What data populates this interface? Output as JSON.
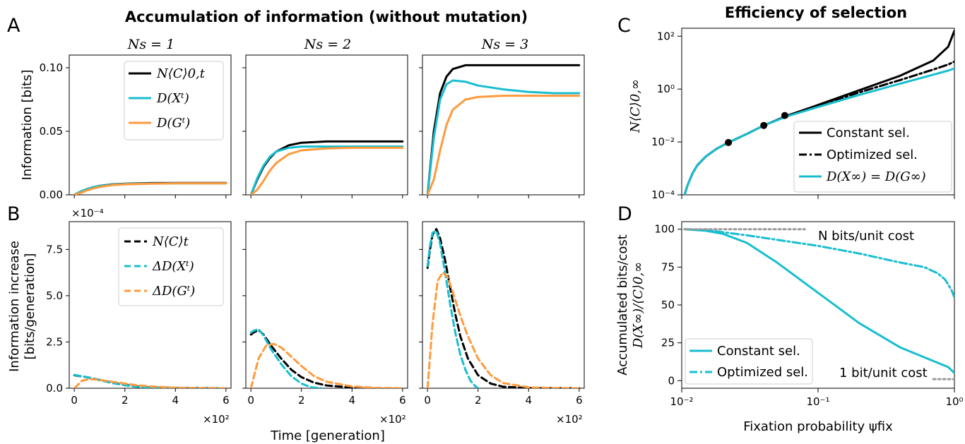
{
  "figure": {
    "left_title": "Accumulation of information (without mutation)",
    "right_title": "Efficiency of selection",
    "panel_letters": [
      "A",
      "B",
      "C",
      "D"
    ],
    "colors": {
      "black": "#000000",
      "cyan": "#17becf",
      "orange": "#ff9a3c",
      "gray": "#9a9a9a"
    }
  },
  "chart_data": [
    {
      "id": "A",
      "type": "line",
      "subplot_titles": [
        "Ns = 1",
        "Ns = 2",
        "Ns = 3"
      ],
      "ylabel": "Information [bits]",
      "ylim": [
        0,
        0.11
      ],
      "yticks": [
        "0.00",
        "0.05",
        "0.10"
      ],
      "ytick_values": [
        0,
        0.05,
        0.1
      ],
      "xlim": [
        -0.2,
        6.2
      ],
      "xtick_values": [
        0,
        2,
        4,
        6
      ],
      "legend": [
        "N⟨C⟩0,t",
        "D(Xᵗ)",
        "D(Gᵗ)"
      ],
      "legend_position": "upper-right (first subplot)",
      "series": [
        {
          "name": "N⟨C⟩0,t",
          "color": "#000000",
          "dash": "solid",
          "x": [
            0,
            0.25,
            0.5,
            0.75,
            1,
            1.5,
            2,
            3,
            4,
            5,
            6
          ],
          "values_by_subplot": [
            [
              0,
              0.0025,
              0.0045,
              0.006,
              0.007,
              0.0082,
              0.0088,
              0.0092,
              0.0093,
              0.0093,
              0.0093
            ],
            [
              0,
              0.012,
              0.022,
              0.029,
              0.034,
              0.039,
              0.041,
              0.042,
              0.042,
              0.042,
              0.042
            ],
            [
              0,
              0.05,
              0.08,
              0.093,
              0.099,
              0.102,
              0.102,
              0.102,
              0.102,
              0.102,
              0.102
            ]
          ]
        },
        {
          "name": "D(Xᵗ)",
          "color": "#17becf",
          "dash": "solid",
          "x": [
            0,
            0.25,
            0.5,
            0.75,
            1,
            1.5,
            2,
            3,
            4,
            5,
            6
          ],
          "values_by_subplot": [
            [
              0,
              0.0025,
              0.0045,
              0.006,
              0.0069,
              0.008,
              0.0086,
              0.0089,
              0.009,
              0.009,
              0.009
            ],
            [
              0,
              0.013,
              0.023,
              0.03,
              0.034,
              0.037,
              0.038,
              0.038,
              0.038,
              0.038,
              0.038
            ],
            [
              0,
              0.045,
              0.075,
              0.087,
              0.09,
              0.089,
              0.086,
              0.083,
              0.081,
              0.08,
              0.08
            ]
          ]
        },
        {
          "name": "D(Gᵗ)",
          "color": "#ff9a3c",
          "dash": "solid",
          "x": [
            0,
            0.25,
            0.5,
            0.75,
            1,
            1.5,
            2,
            3,
            4,
            5,
            6
          ],
          "values_by_subplot": [
            [
              0,
              0.0015,
              0.0035,
              0.005,
              0.0062,
              0.0076,
              0.0083,
              0.0088,
              0.009,
              0.009,
              0.009
            ],
            [
              0,
              0.004,
              0.011,
              0.019,
              0.025,
              0.032,
              0.035,
              0.0365,
              0.037,
              0.037,
              0.037
            ],
            [
              0,
              0.012,
              0.035,
              0.055,
              0.067,
              0.075,
              0.077,
              0.078,
              0.078,
              0.078,
              0.078
            ]
          ]
        }
      ]
    },
    {
      "id": "B",
      "type": "line",
      "ylabel": [
        "Information increase",
        "[bits/generation]"
      ],
      "yscale_label": "×10⁻⁴",
      "ylim": [
        0,
        9
      ],
      "yticks": [
        "0.0",
        "2.5",
        "5.0",
        "7.5"
      ],
      "ytick_values": [
        0,
        2.5,
        5.0,
        7.5
      ],
      "xlabel": "Time [generation]",
      "xscale_label": "×10²",
      "xlim": [
        -0.2,
        6.2
      ],
      "xticks": [
        "0",
        "2",
        "4",
        "6"
      ],
      "xtick_values": [
        0,
        2,
        4,
        6
      ],
      "legend": [
        "N⟨C⟩t",
        "ΔD(Xᵗ)",
        "ΔD(Gᵗ)"
      ],
      "legend_position": "upper-right (first subplot)",
      "series": [
        {
          "name": "N⟨C⟩t",
          "color": "#000000",
          "dash": "dashed",
          "x_by_subplot": [
            [
              0,
              0.5,
              1,
              1.5,
              2,
              2.5,
              3,
              4,
              5,
              6
            ],
            [
              0,
              0.1,
              0.3,
              0.5,
              0.8,
              1.2,
              1.6,
              2,
              2.5,
              3,
              4,
              5,
              6
            ],
            [
              0,
              0.1,
              0.2,
              0.35,
              0.5,
              0.7,
              0.9,
              1.1,
              1.3,
              1.6,
              2,
              2.5,
              3,
              4,
              5,
              6
            ]
          ],
          "values_by_subplot": [
            [
              0.7,
              0.6,
              0.45,
              0.3,
              0.18,
              0.1,
              0.05,
              0.02,
              0.01,
              0
            ],
            [
              2.9,
              3.0,
              3.15,
              2.9,
              2.3,
              1.6,
              1.0,
              0.6,
              0.3,
              0.15,
              0.04,
              0.01,
              0
            ],
            [
              6.5,
              7.5,
              8.3,
              8.6,
              8.1,
              6.9,
              5.4,
              4.0,
              2.8,
              1.6,
              0.7,
              0.25,
              0.08,
              0.01,
              0,
              0
            ]
          ]
        },
        {
          "name": "ΔD(Xᵗ)",
          "color": "#17becf",
          "dash": "dashed",
          "x_by_subplot": [
            [
              0,
              0.5,
              1,
              1.5,
              2,
              2.5,
              3,
              4,
              5,
              6
            ],
            [
              0,
              0.1,
              0.3,
              0.5,
              0.8,
              1.2,
              1.6,
              2,
              2.4,
              2.8
            ],
            [
              0,
              0.1,
              0.2,
              0.35,
              0.5,
              0.7,
              0.9,
              1.1,
              1.3,
              1.5,
              1.7,
              1.9,
              2.0
            ]
          ],
          "values_by_subplot": [
            [
              0.72,
              0.6,
              0.44,
              0.28,
              0.16,
              0.08,
              0.04,
              0.01,
              0,
              0
            ],
            [
              3.0,
              3.1,
              3.2,
              2.85,
              2.1,
              1.3,
              0.65,
              0.25,
              0.05,
              0
            ],
            [
              6.6,
              7.7,
              8.4,
              8.5,
              7.8,
              6.2,
              4.5,
              3.0,
              1.8,
              1.0,
              0.4,
              0.1,
              0
            ]
          ]
        },
        {
          "name": "ΔD(Gᵗ)",
          "color": "#ff9a3c",
          "dash": "dashed",
          "x_by_subplot": [
            [
              0,
              0.3,
              0.6,
              1,
              1.5,
              2,
              2.5,
              3,
              4,
              5,
              6
            ],
            [
              0,
              0.3,
              0.6,
              0.9,
              1.2,
              1.6,
              2,
              2.5,
              3,
              4,
              5,
              6
            ],
            [
              0,
              0.2,
              0.4,
              0.6,
              0.8,
              1.0,
              1.3,
              1.6,
              2,
              2.5,
              3,
              4,
              5,
              6
            ]
          ],
          "values_by_subplot": [
            [
              0,
              0.4,
              0.5,
              0.45,
              0.35,
              0.25,
              0.16,
              0.1,
              0.03,
              0.01,
              0
            ],
            [
              0,
              1.6,
              2.3,
              2.4,
              2.2,
              1.7,
              1.2,
              0.65,
              0.35,
              0.1,
              0.02,
              0
            ],
            [
              0,
              3.5,
              5.8,
              6.25,
              6.0,
              5.2,
              3.9,
              2.8,
              1.6,
              0.7,
              0.28,
              0.05,
              0.01,
              0
            ]
          ]
        }
      ]
    },
    {
      "id": "C",
      "type": "line",
      "title": "Efficiency of selection",
      "ylabel": "N⟨C⟩0,∞",
      "xscale": "log",
      "yscale": "log",
      "xlim": [
        0.01,
        1
      ],
      "ylim": [
        0.0001,
        200
      ],
      "yticks": [
        "10²",
        "10⁰",
        "10⁻²",
        "10⁻⁴"
      ],
      "ytick_values": [
        100,
        1,
        0.01,
        0.0001
      ],
      "xtick_values": [
        0.01,
        0.1,
        1
      ],
      "legend": [
        "Constant sel.",
        "Optimized sel.",
        "D(X∞) = D(G∞)"
      ],
      "legend_position": "lower-right",
      "series": [
        {
          "name": "Constant sel.",
          "color": "#000000",
          "dash": "solid",
          "x": [
            0.0105,
            0.011,
            0.012,
            0.013,
            0.015,
            0.018,
            0.022,
            0.03,
            0.04,
            0.06,
            0.1,
            0.2,
            0.4,
            0.7,
            0.9,
            1.0
          ],
          "values": [
            0.0001,
            0.00022,
            0.00065,
            0.0013,
            0.0028,
            0.0055,
            0.0095,
            0.02,
            0.042,
            0.1,
            0.25,
            0.9,
            3.2,
            12,
            40,
            160
          ]
        },
        {
          "name": "Optimized sel.",
          "color": "#000000",
          "dash": "dashdot",
          "x": [
            0.0105,
            0.011,
            0.012,
            0.013,
            0.015,
            0.018,
            0.022,
            0.03,
            0.04,
            0.06,
            0.1,
            0.2,
            0.4,
            0.7,
            0.9,
            1.0
          ],
          "values": [
            0.0001,
            0.00022,
            0.00065,
            0.0013,
            0.0028,
            0.0055,
            0.0095,
            0.02,
            0.042,
            0.1,
            0.23,
            0.75,
            2.2,
            5.5,
            8.5,
            11
          ]
        },
        {
          "name": "D(X∞) = D(G∞)",
          "color": "#17becf",
          "dash": "solid",
          "x": [
            0.0105,
            0.011,
            0.012,
            0.013,
            0.015,
            0.018,
            0.022,
            0.03,
            0.04,
            0.06,
            0.1,
            0.2,
            0.4,
            0.7,
            0.9,
            1.0
          ],
          "values": [
            0.0001,
            0.00022,
            0.00065,
            0.0013,
            0.0028,
            0.0055,
            0.0095,
            0.02,
            0.042,
            0.095,
            0.21,
            0.6,
            1.6,
            3.5,
            5.0,
            6.0
          ]
        }
      ],
      "markers": {
        "x": [
          0.022,
          0.04,
          0.057
        ],
        "values": [
          0.0095,
          0.042,
          0.1
        ]
      }
    },
    {
      "id": "D",
      "type": "line",
      "ylabel": [
        "Accumulated bits/cost",
        "D(X∞)/⟨C⟩0,∞"
      ],
      "xlabel": "Fixation probability ψfix",
      "xscale": "log",
      "xlim": [
        0.01,
        1
      ],
      "ylim": [
        -5,
        105
      ],
      "yticks": [
        "0",
        "25",
        "50",
        "75",
        "100"
      ],
      "ytick_values": [
        0,
        25,
        50,
        75,
        100
      ],
      "xticks": [
        "10⁻²",
        "10⁻¹",
        "10⁰"
      ],
      "xtick_values": [
        0.01,
        0.1,
        1
      ],
      "legend": [
        "Constant sel.",
        "Optimized sel."
      ],
      "legend_position": "lower-left",
      "annotations": [
        "N bits/unit cost",
        "1 bit/unit cost"
      ],
      "series": [
        {
          "name": "Constant sel.",
          "color": "#17becf",
          "dash": "solid",
          "x": [
            0.0105,
            0.015,
            0.02,
            0.03,
            0.05,
            0.1,
            0.2,
            0.4,
            0.7,
            0.9,
            1.0
          ],
          "values": [
            100,
            99,
            97,
            91,
            78,
            58,
            38,
            22,
            13,
            9,
            5
          ]
        },
        {
          "name": "Optimized sel.",
          "color": "#17becf",
          "dash": "dashdot",
          "x": [
            0.0105,
            0.015,
            0.02,
            0.03,
            0.05,
            0.1,
            0.2,
            0.4,
            0.6,
            0.75,
            0.85,
            0.95,
            1.0
          ],
          "values": [
            100,
            99.5,
            98,
            96,
            93,
            89,
            84,
            78,
            75,
            71,
            67,
            60,
            55
          ]
        },
        {
          "name": "N bits/unit cost",
          "color": "#9a9a9a",
          "dash": "dotted",
          "x": [
            0.0105,
            0.08
          ],
          "values": [
            100,
            100
          ]
        },
        {
          "name": "1 bit/unit cost",
          "color": "#9a9a9a",
          "dash": "dotted",
          "x": [
            0.7,
            1.0
          ],
          "values": [
            1,
            1
          ]
        }
      ]
    }
  ]
}
